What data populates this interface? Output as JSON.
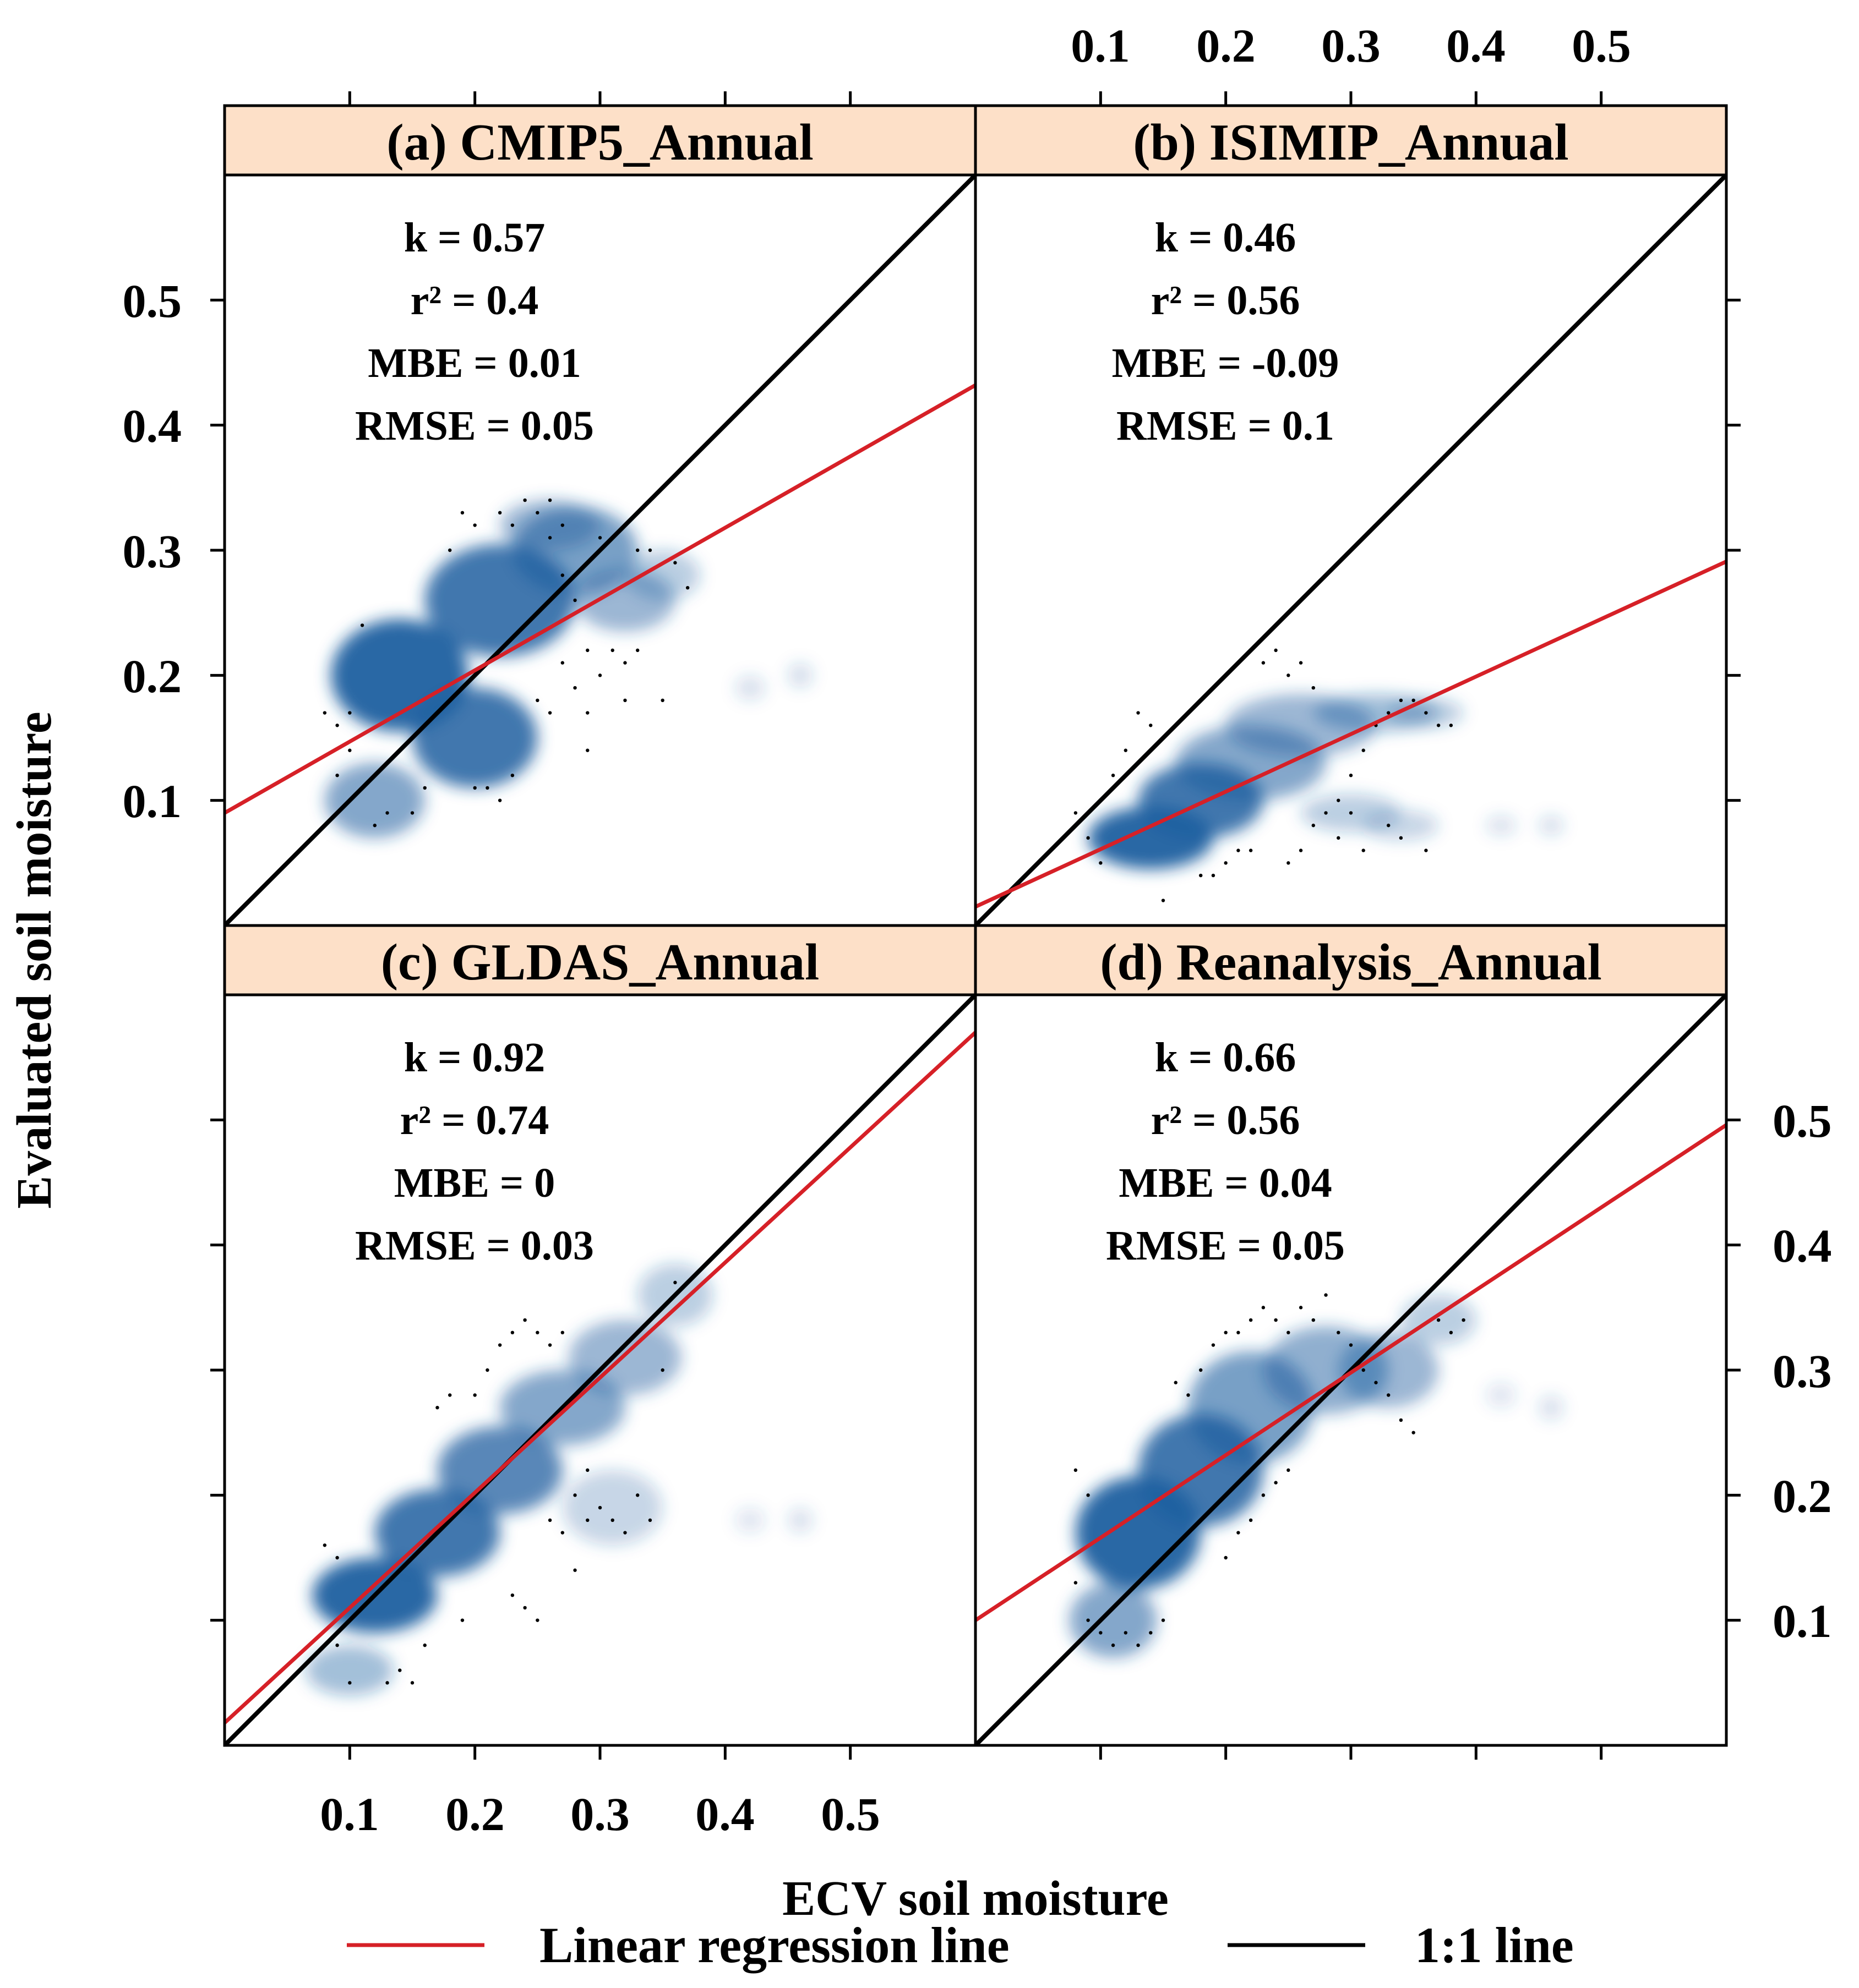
{
  "chart_data": {
    "type": "scatter",
    "layout": "2x2 density scatter panels with shared axes",
    "xlabel": "ECV soil moisture",
    "ylabel": "Evaluated soil moisture",
    "xlim": [
      0.0,
      0.6
    ],
    "ylim": [
      0.0,
      0.6
    ],
    "x_ticks": [
      0.1,
      0.2,
      0.3,
      0.4,
      0.5
    ],
    "y_ticks": [
      0.1,
      0.2,
      0.3,
      0.4,
      0.5
    ],
    "x_tick_labels": [
      "0.1",
      "0.2",
      "0.3",
      "0.4",
      "0.5"
    ],
    "y_tick_labels": [
      "0.1",
      "0.2",
      "0.3",
      "0.4",
      "0.5"
    ],
    "colors": {
      "strip_fill": "#fde0c8",
      "density": "#1f5fa0",
      "regression": "#d62027",
      "one_to_one": "#000000"
    },
    "legend": [
      {
        "label": "Linear regression line",
        "color": "#d62027"
      },
      {
        "label": "1:1 line",
        "color": "#000000"
      }
    ],
    "panels": [
      {
        "title": "(a) CMIP5_Annual",
        "stats": [
          "k =  0.57",
          "r² = 0.4",
          "MBE = 0.01",
          "RMSE = 0.05"
        ],
        "regression": {
          "intercept": 0.09,
          "slope": 0.57
        },
        "density": [
          [
            0.14,
            0.2,
            0.055,
            0.045,
            0.95
          ],
          [
            0.2,
            0.15,
            0.05,
            0.04,
            0.85
          ],
          [
            0.22,
            0.26,
            0.06,
            0.045,
            0.85
          ],
          [
            0.28,
            0.3,
            0.05,
            0.035,
            0.6
          ],
          [
            0.32,
            0.26,
            0.04,
            0.025,
            0.45
          ],
          [
            0.12,
            0.1,
            0.04,
            0.03,
            0.55
          ],
          [
            0.26,
            0.32,
            0.04,
            0.02,
            0.45
          ],
          [
            0.35,
            0.28,
            0.03,
            0.02,
            0.3
          ],
          [
            0.42,
            0.19,
            0.012,
            0.01,
            0.18
          ],
          [
            0.46,
            0.2,
            0.01,
            0.01,
            0.2
          ]
        ],
        "points": [
          [
            0.08,
            0.17
          ],
          [
            0.09,
            0.16
          ],
          [
            0.1,
            0.14
          ],
          [
            0.1,
            0.17
          ],
          [
            0.09,
            0.12
          ],
          [
            0.11,
            0.24
          ],
          [
            0.12,
            0.08
          ],
          [
            0.13,
            0.09
          ],
          [
            0.15,
            0.09
          ],
          [
            0.16,
            0.11
          ],
          [
            0.18,
            0.3
          ],
          [
            0.19,
            0.33
          ],
          [
            0.2,
            0.32
          ],
          [
            0.22,
            0.33
          ],
          [
            0.23,
            0.32
          ],
          [
            0.24,
            0.34
          ],
          [
            0.25,
            0.33
          ],
          [
            0.26,
            0.34
          ],
          [
            0.27,
            0.32
          ],
          [
            0.26,
            0.31
          ],
          [
            0.27,
            0.28
          ],
          [
            0.28,
            0.26
          ],
          [
            0.29,
            0.22
          ],
          [
            0.28,
            0.19
          ],
          [
            0.29,
            0.17
          ],
          [
            0.29,
            0.14
          ],
          [
            0.3,
            0.2
          ],
          [
            0.3,
            0.31
          ],
          [
            0.31,
            0.22
          ],
          [
            0.32,
            0.21
          ],
          [
            0.32,
            0.18
          ],
          [
            0.33,
            0.22
          ],
          [
            0.33,
            0.3
          ],
          [
            0.34,
            0.3
          ],
          [
            0.35,
            0.18
          ],
          [
            0.36,
            0.29
          ],
          [
            0.37,
            0.27
          ],
          [
            0.2,
            0.11
          ],
          [
            0.21,
            0.11
          ],
          [
            0.22,
            0.1
          ],
          [
            0.23,
            0.12
          ],
          [
            0.25,
            0.18
          ],
          [
            0.26,
            0.17
          ],
          [
            0.27,
            0.21
          ]
        ]
      },
      {
        "title": "(b) ISIMIP_Annual",
        "stats": [
          "k =  0.46",
          "r² = 0.56",
          "MBE = -0.09",
          "RMSE = 0.1"
        ],
        "regression": {
          "intercept": 0.015,
          "slope": 0.46
        },
        "density": [
          [
            0.14,
            0.07,
            0.05,
            0.025,
            0.95
          ],
          [
            0.18,
            0.1,
            0.05,
            0.03,
            0.85
          ],
          [
            0.22,
            0.13,
            0.06,
            0.03,
            0.55
          ],
          [
            0.26,
            0.16,
            0.06,
            0.025,
            0.45
          ],
          [
            0.32,
            0.17,
            0.05,
            0.015,
            0.4
          ],
          [
            0.36,
            0.17,
            0.03,
            0.012,
            0.3
          ],
          [
            0.3,
            0.09,
            0.04,
            0.015,
            0.3
          ],
          [
            0.34,
            0.08,
            0.03,
            0.012,
            0.25
          ],
          [
            0.42,
            0.08,
            0.012,
            0.008,
            0.18
          ],
          [
            0.46,
            0.08,
            0.01,
            0.008,
            0.2
          ]
        ],
        "points": [
          [
            0.08,
            0.09
          ],
          [
            0.09,
            0.07
          ],
          [
            0.1,
            0.05
          ],
          [
            0.1,
            0.1
          ],
          [
            0.11,
            0.12
          ],
          [
            0.12,
            0.14
          ],
          [
            0.13,
            0.17
          ],
          [
            0.14,
            0.16
          ],
          [
            0.15,
            0.02
          ],
          [
            0.18,
            0.04
          ],
          [
            0.19,
            0.04
          ],
          [
            0.2,
            0.05
          ],
          [
            0.21,
            0.06
          ],
          [
            0.22,
            0.06
          ],
          [
            0.23,
            0.21
          ],
          [
            0.24,
            0.22
          ],
          [
            0.25,
            0.2
          ],
          [
            0.26,
            0.21
          ],
          [
            0.27,
            0.19
          ],
          [
            0.27,
            0.08
          ],
          [
            0.28,
            0.09
          ],
          [
            0.29,
            0.1
          ],
          [
            0.3,
            0.12
          ],
          [
            0.31,
            0.14
          ],
          [
            0.32,
            0.16
          ],
          [
            0.33,
            0.17
          ],
          [
            0.34,
            0.18
          ],
          [
            0.35,
            0.18
          ],
          [
            0.36,
            0.17
          ],
          [
            0.37,
            0.16
          ],
          [
            0.38,
            0.16
          ],
          [
            0.29,
            0.07
          ],
          [
            0.31,
            0.06
          ],
          [
            0.33,
            0.08
          ],
          [
            0.34,
            0.07
          ],
          [
            0.36,
            0.06
          ],
          [
            0.25,
            0.05
          ],
          [
            0.26,
            0.06
          ],
          [
            0.3,
            0.09
          ]
        ]
      },
      {
        "title": "(c) GLDAS_Annual",
        "stats": [
          "k =  0.92",
          "r² = 0.74",
          "MBE = 0",
          "RMSE = 0.03"
        ],
        "regression": {
          "intercept": 0.018,
          "slope": 0.92
        },
        "density": [
          [
            0.12,
            0.12,
            0.05,
            0.03,
            0.95
          ],
          [
            0.17,
            0.17,
            0.05,
            0.035,
            0.85
          ],
          [
            0.22,
            0.22,
            0.05,
            0.035,
            0.75
          ],
          [
            0.27,
            0.27,
            0.05,
            0.03,
            0.55
          ],
          [
            0.32,
            0.31,
            0.045,
            0.03,
            0.45
          ],
          [
            0.36,
            0.36,
            0.03,
            0.025,
            0.3
          ],
          [
            0.1,
            0.06,
            0.035,
            0.02,
            0.4
          ],
          [
            0.31,
            0.19,
            0.04,
            0.03,
            0.25
          ],
          [
            0.42,
            0.18,
            0.012,
            0.01,
            0.15
          ],
          [
            0.46,
            0.18,
            0.01,
            0.01,
            0.18
          ]
        ],
        "points": [
          [
            0.08,
            0.16
          ],
          [
            0.09,
            0.15
          ],
          [
            0.09,
            0.08
          ],
          [
            0.1,
            0.05
          ],
          [
            0.13,
            0.05
          ],
          [
            0.14,
            0.06
          ],
          [
            0.15,
            0.05
          ],
          [
            0.16,
            0.08
          ],
          [
            0.17,
            0.27
          ],
          [
            0.18,
            0.28
          ],
          [
            0.2,
            0.28
          ],
          [
            0.21,
            0.3
          ],
          [
            0.22,
            0.32
          ],
          [
            0.23,
            0.33
          ],
          [
            0.24,
            0.34
          ],
          [
            0.25,
            0.33
          ],
          [
            0.26,
            0.32
          ],
          [
            0.27,
            0.33
          ],
          [
            0.26,
            0.18
          ],
          [
            0.27,
            0.17
          ],
          [
            0.28,
            0.2
          ],
          [
            0.28,
            0.14
          ],
          [
            0.29,
            0.18
          ],
          [
            0.29,
            0.22
          ],
          [
            0.3,
            0.19
          ],
          [
            0.31,
            0.18
          ],
          [
            0.32,
            0.17
          ],
          [
            0.33,
            0.2
          ],
          [
            0.34,
            0.18
          ],
          [
            0.35,
            0.3
          ],
          [
            0.36,
            0.37
          ],
          [
            0.38,
            0.38
          ],
          [
            0.23,
            0.12
          ],
          [
            0.24,
            0.11
          ],
          [
            0.25,
            0.1
          ],
          [
            0.19,
            0.1
          ]
        ]
      },
      {
        "title": "(d) Reanalysis_Annual",
        "stats": [
          "k =  0.66",
          "r² = 0.56",
          "MBE = 0.04",
          "RMSE = 0.05"
        ],
        "regression": {
          "intercept": 0.1,
          "slope": 0.66
        },
        "density": [
          [
            0.13,
            0.17,
            0.05,
            0.045,
            0.95
          ],
          [
            0.18,
            0.22,
            0.05,
            0.045,
            0.85
          ],
          [
            0.22,
            0.27,
            0.05,
            0.045,
            0.6
          ],
          [
            0.28,
            0.3,
            0.05,
            0.035,
            0.5
          ],
          [
            0.33,
            0.3,
            0.04,
            0.03,
            0.45
          ],
          [
            0.37,
            0.34,
            0.03,
            0.02,
            0.3
          ],
          [
            0.11,
            0.1,
            0.035,
            0.03,
            0.55
          ],
          [
            0.42,
            0.28,
            0.012,
            0.01,
            0.15
          ],
          [
            0.46,
            0.27,
            0.01,
            0.01,
            0.18
          ]
        ],
        "points": [
          [
            0.08,
            0.22
          ],
          [
            0.09,
            0.2
          ],
          [
            0.08,
            0.13
          ],
          [
            0.09,
            0.1
          ],
          [
            0.1,
            0.09
          ],
          [
            0.11,
            0.08
          ],
          [
            0.12,
            0.09
          ],
          [
            0.13,
            0.08
          ],
          [
            0.14,
            0.09
          ],
          [
            0.15,
            0.1
          ],
          [
            0.16,
            0.29
          ],
          [
            0.17,
            0.28
          ],
          [
            0.18,
            0.3
          ],
          [
            0.19,
            0.32
          ],
          [
            0.2,
            0.33
          ],
          [
            0.21,
            0.33
          ],
          [
            0.22,
            0.34
          ],
          [
            0.23,
            0.35
          ],
          [
            0.24,
            0.34
          ],
          [
            0.25,
            0.33
          ],
          [
            0.26,
            0.35
          ],
          [
            0.27,
            0.34
          ],
          [
            0.28,
            0.36
          ],
          [
            0.29,
            0.33
          ],
          [
            0.3,
            0.32
          ],
          [
            0.31,
            0.3
          ],
          [
            0.32,
            0.29
          ],
          [
            0.33,
            0.28
          ],
          [
            0.34,
            0.26
          ],
          [
            0.35,
            0.25
          ],
          [
            0.37,
            0.34
          ],
          [
            0.38,
            0.33
          ],
          [
            0.39,
            0.34
          ],
          [
            0.2,
            0.15
          ],
          [
            0.21,
            0.17
          ],
          [
            0.22,
            0.18
          ],
          [
            0.23,
            0.2
          ],
          [
            0.24,
            0.21
          ],
          [
            0.25,
            0.22
          ]
        ]
      }
    ]
  }
}
